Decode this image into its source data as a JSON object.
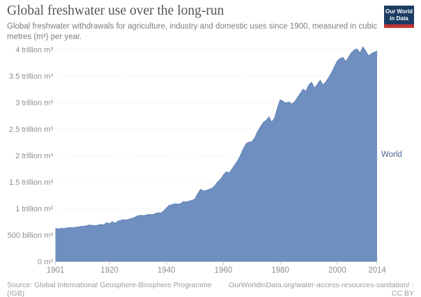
{
  "header": {
    "title": "Global freshwater use over the long-run",
    "subtitle": "Global freshwater withdrawals for agriculture, industry and domestic uses since 1900, measured in cubic metres (m³) per year."
  },
  "logo": {
    "line1": "Our World",
    "line2": "in Data",
    "bg_color": "#1c3d63",
    "stripe_color": "#c23335"
  },
  "footer": {
    "source": "Source: Global International Geosphere-Biosphere Programme (IGB)",
    "credit": "OurWorldInData.org/water-access-resources-sanitation/ · CC BY"
  },
  "chart_data": {
    "type": "area",
    "title": "Global freshwater use over the long-run",
    "unit": "trillion m³ per year",
    "grid": "dotted-horizontal",
    "legend_position": "right-of-area",
    "area_color": "#6e8fc0",
    "line_color": "#5f82b6",
    "series_label_color": "#4d6795",
    "xlim": [
      1901,
      2014
    ],
    "ylim": [
      0,
      4.16
    ],
    "xticks": [
      1901,
      1920,
      1940,
      1960,
      1980,
      2000,
      2014
    ],
    "yticks": [
      {
        "v": 0,
        "label": "0 m³"
      },
      {
        "v": 0.5,
        "label": "500 billion m³"
      },
      {
        "v": 1,
        "label": "1 trillion m³"
      },
      {
        "v": 1.5,
        "label": "1.5 trillion m³"
      },
      {
        "v": 2,
        "label": "2 trillion m³"
      },
      {
        "v": 2.5,
        "label": "2.5 trillion m³"
      },
      {
        "v": 3,
        "label": "3 trillion m³"
      },
      {
        "v": 3.5,
        "label": "3.5 trillion m³"
      },
      {
        "v": 4,
        "label": "4 trillion m³"
      }
    ],
    "x": [
      1901,
      1902,
      1903,
      1904,
      1905,
      1906,
      1907,
      1908,
      1909,
      1910,
      1911,
      1912,
      1913,
      1914,
      1915,
      1916,
      1917,
      1918,
      1919,
      1920,
      1921,
      1922,
      1923,
      1924,
      1925,
      1926,
      1927,
      1928,
      1929,
      1930,
      1931,
      1932,
      1933,
      1934,
      1935,
      1936,
      1937,
      1938,
      1939,
      1940,
      1941,
      1942,
      1943,
      1944,
      1945,
      1946,
      1947,
      1948,
      1949,
      1950,
      1951,
      1952,
      1953,
      1954,
      1955,
      1956,
      1957,
      1958,
      1959,
      1960,
      1961,
      1962,
      1963,
      1964,
      1965,
      1966,
      1967,
      1968,
      1969,
      1970,
      1971,
      1972,
      1973,
      1974,
      1975,
      1976,
      1977,
      1978,
      1979,
      1980,
      1981,
      1982,
      1983,
      1984,
      1985,
      1986,
      1987,
      1988,
      1989,
      1990,
      1991,
      1992,
      1993,
      1994,
      1995,
      1996,
      1997,
      1998,
      1999,
      2000,
      2001,
      2002,
      2003,
      2004,
      2005,
      2006,
      2007,
      2008,
      2009,
      2010,
      2011,
      2012,
      2013,
      2014
    ],
    "series": [
      {
        "name": "World",
        "unit": "trillion m³",
        "values": [
          0.63,
          0.61,
          0.625,
          0.62,
          0.63,
          0.64,
          0.635,
          0.645,
          0.65,
          0.66,
          0.665,
          0.675,
          0.69,
          0.68,
          0.675,
          0.685,
          0.7,
          0.69,
          0.73,
          0.71,
          0.75,
          0.72,
          0.76,
          0.775,
          0.79,
          0.78,
          0.8,
          0.815,
          0.835,
          0.86,
          0.87,
          0.865,
          0.875,
          0.89,
          0.88,
          0.9,
          0.92,
          0.91,
          0.95,
          1.01,
          1.06,
          1.07,
          1.09,
          1.08,
          1.09,
          1.13,
          1.12,
          1.14,
          1.15,
          1.18,
          1.28,
          1.36,
          1.33,
          1.34,
          1.36,
          1.38,
          1.43,
          1.5,
          1.55,
          1.63,
          1.69,
          1.67,
          1.74,
          1.82,
          1.9,
          2.0,
          2.12,
          2.22,
          2.25,
          2.26,
          2.33,
          2.45,
          2.54,
          2.62,
          2.66,
          2.73,
          2.63,
          2.71,
          2.9,
          3.05,
          3.02,
          2.99,
          3.01,
          2.97,
          3.01,
          3.09,
          3.17,
          3.25,
          3.21,
          3.33,
          3.38,
          3.27,
          3.34,
          3.42,
          3.33,
          3.39,
          3.47,
          3.56,
          3.67,
          3.78,
          3.83,
          3.85,
          3.77,
          3.86,
          3.94,
          3.99,
          4.01,
          3.93,
          4.05,
          3.97,
          3.88,
          3.92,
          3.95,
          3.97
        ]
      }
    ]
  },
  "series_label": "World"
}
